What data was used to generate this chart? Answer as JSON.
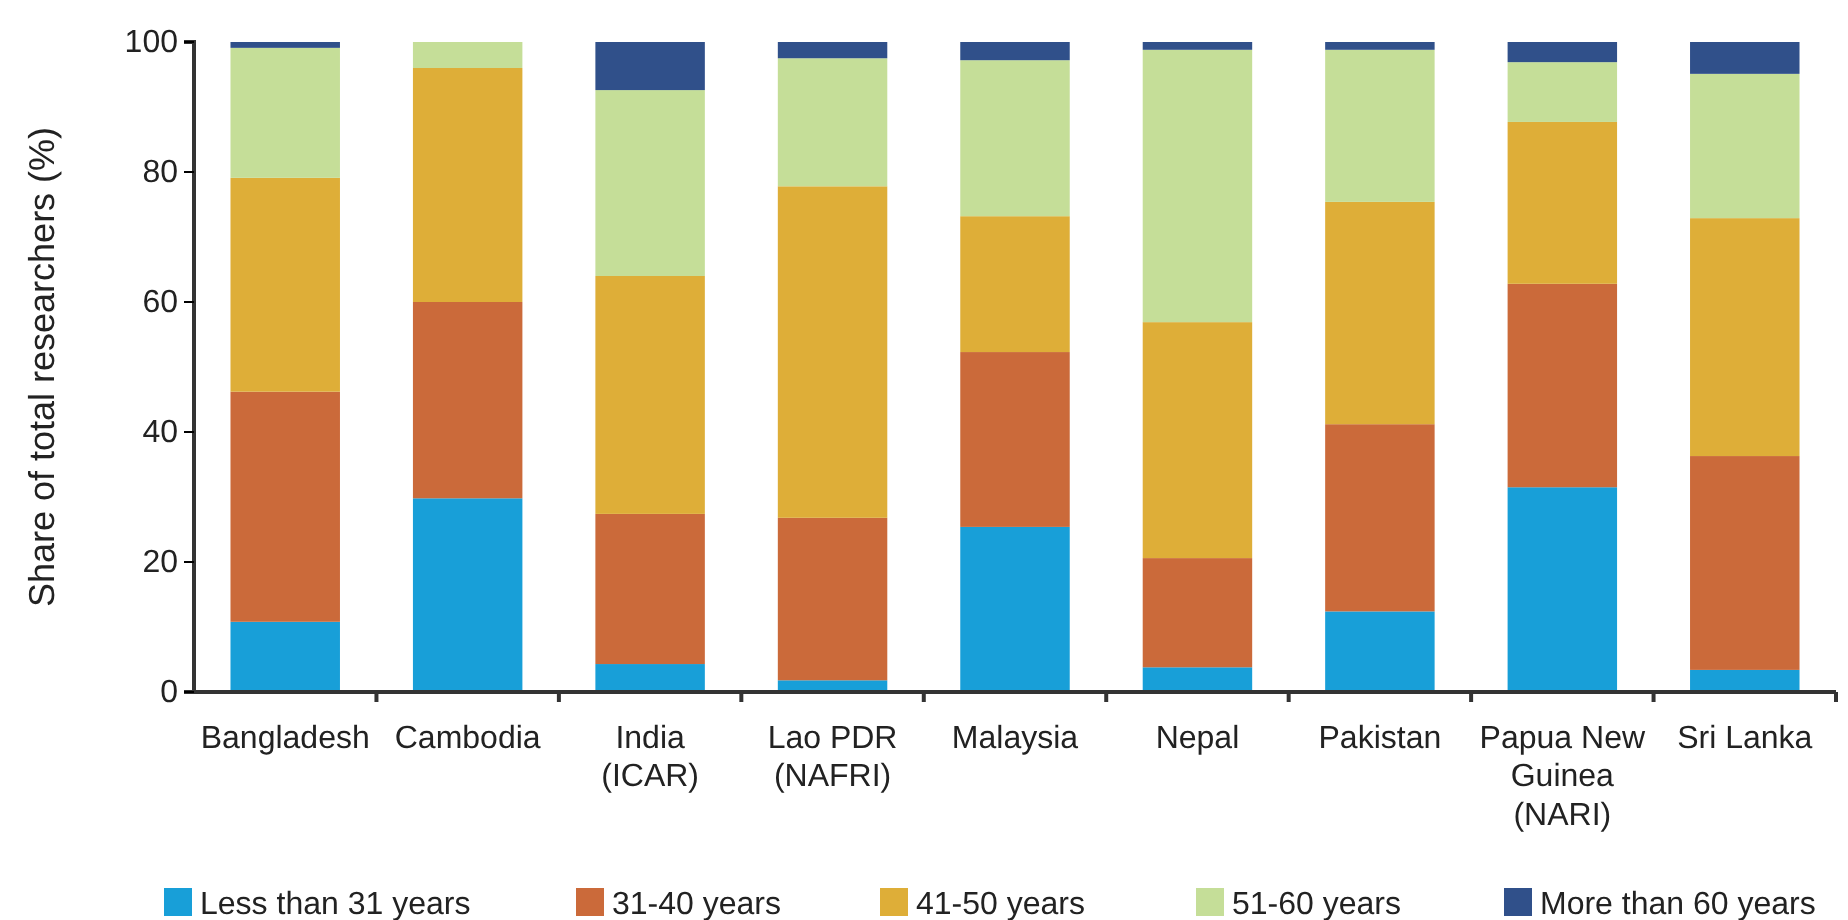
{
  "chart_data": {
    "type": "bar",
    "stacked": true,
    "ylabel": "Share of total researchers (%)",
    "categories": [
      "Bangladesh",
      "Cambodia",
      "India (ICAR)",
      "Lao PDR (NAFRI)",
      "Malaysia",
      "Nepal",
      "Pakistan",
      "Papua New Guinea (NARI)",
      "Sri Lanka"
    ],
    "series": [
      {
        "name": "Less than 31 years",
        "color": "#189fd8",
        "values": [
          10.8,
          29.8,
          4.3,
          1.8,
          25.4,
          3.8,
          12.4,
          31.5,
          3.4
        ]
      },
      {
        "name": "31-40 years",
        "color": "#cb6a3a",
        "values": [
          35.4,
          30.2,
          23.1,
          25,
          26.9,
          16.8,
          28.8,
          31.3,
          32.9
        ]
      },
      {
        "name": "41-50 years",
        "color": "#deae38",
        "values": [
          32.9,
          36,
          36.6,
          51,
          20.9,
          36.3,
          34.2,
          24.9,
          36.6
        ]
      },
      {
        "name": "51-60 years",
        "color": "#c5de98",
        "values": [
          20,
          4,
          28.6,
          19.7,
          24,
          41.9,
          23.4,
          9.2,
          22.2
        ]
      },
      {
        "name": "More than 60 years",
        "color": "#30508a",
        "values": [
          0.9,
          0,
          7.4,
          2.5,
          2.8,
          1.2,
          1.2,
          3.1,
          4.9
        ]
      }
    ],
    "ylim": [
      0,
      100
    ],
    "yticks": [
      0,
      20,
      40,
      60,
      80,
      100
    ],
    "grid": false,
    "legend": "bottom"
  }
}
